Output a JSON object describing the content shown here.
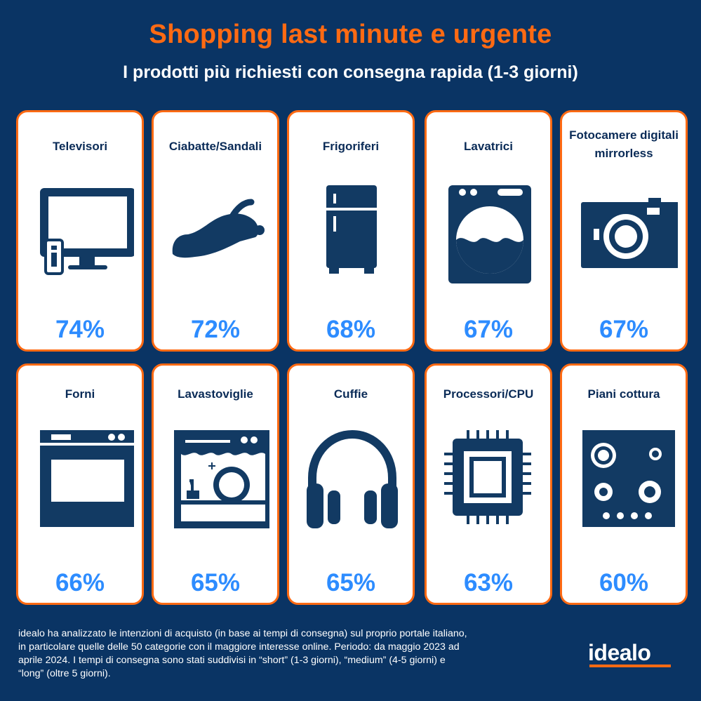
{
  "header": {
    "title": "Shopping last minute e urgente",
    "subtitle": "I prodotti più richiesti con consegna rapida (1-3 giorni)"
  },
  "colors": {
    "background": "#0a3464",
    "accent": "#ff6a13",
    "value": "#2d8cff",
    "icon": "#123a63"
  },
  "cards": [
    {
      "label": "Televisori",
      "value": "74%",
      "icon": "tv-icon"
    },
    {
      "label": "Ciabatte/Sandali",
      "value": "72%",
      "icon": "clog-icon"
    },
    {
      "label": "Frigoriferi",
      "value": "68%",
      "icon": "fridge-icon"
    },
    {
      "label": "Lavatrici",
      "value": "67%",
      "icon": "washing-machine-icon"
    },
    {
      "label": "Fotocamere digitali mirrorless",
      "value": "67%",
      "icon": "camera-icon"
    },
    {
      "label": "Forni",
      "value": "66%",
      "icon": "oven-icon"
    },
    {
      "label": "Lavastoviglie",
      "value": "65%",
      "icon": "dishwasher-icon"
    },
    {
      "label": "Cuffie",
      "value": "65%",
      "icon": "headphones-icon"
    },
    {
      "label": "Processori/CPU",
      "value": "63%",
      "icon": "cpu-icon"
    },
    {
      "label": "Piani cottura",
      "value": "60%",
      "icon": "cooktop-icon"
    }
  ],
  "footnote": "idealo ha analizzato le intenzioni di acquisto (in base ai tempi di consegna) sul proprio portale italiano, in particolare quelle delle 50 categorie con il maggiore interesse online. Periodo: da maggio 2023 ad aprile 2024. I tempi di consegna sono stati suddivisi in “short” (1-3 giorni), “medium” (4-5 giorni) e “long” (oltre 5 giorni).",
  "logo": "idealo"
}
